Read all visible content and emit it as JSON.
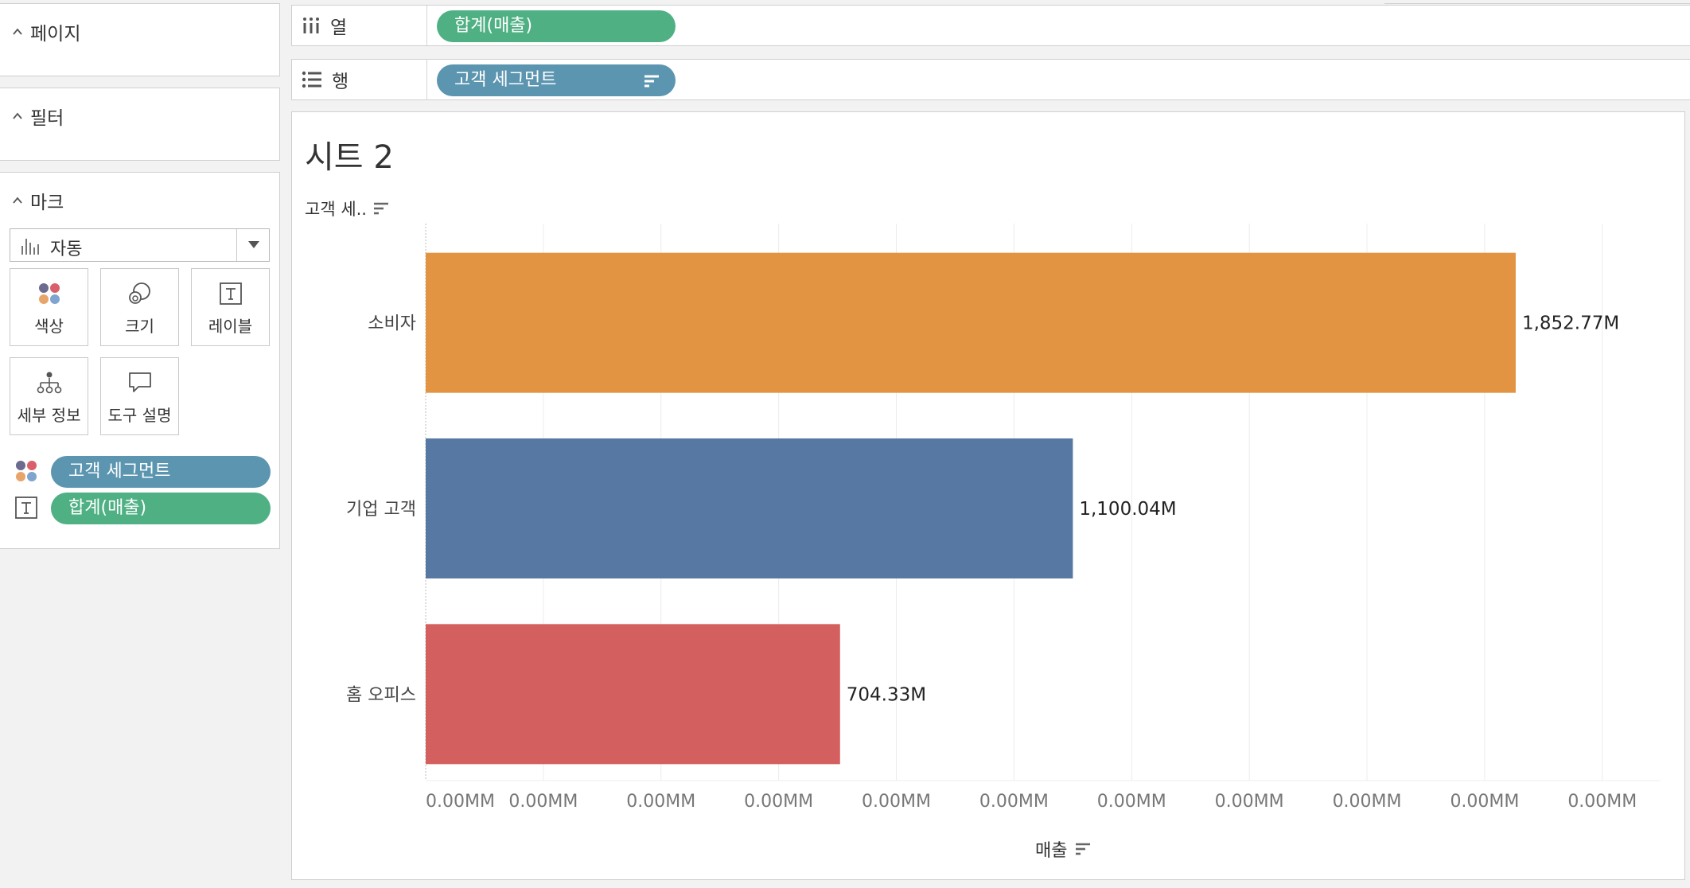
{
  "sidebar": {
    "pages": {
      "title": "페이지"
    },
    "filters": {
      "title": "필터"
    },
    "marks": {
      "title": "마크",
      "mark_type": "자동",
      "buttons": [
        {
          "label": "색상",
          "icon": "color-dots-icon"
        },
        {
          "label": "크기",
          "icon": "size-circles-icon"
        },
        {
          "label": "레이블",
          "icon": "label-t-icon"
        },
        {
          "label": "세부 정보",
          "icon": "detail-hierarchy-icon"
        },
        {
          "label": "도구 설명",
          "icon": "tooltip-bubble-icon"
        }
      ],
      "assigned": [
        {
          "label": "고객 세그먼트",
          "icon": "color-dots-icon",
          "color": "#5b95b0"
        },
        {
          "label": "합계(매출)",
          "icon": "label-t-icon",
          "color": "#4fb084"
        }
      ]
    }
  },
  "shelves": {
    "columns": {
      "label": "열",
      "pill": "합계(매출)",
      "icon": "columns-icon"
    },
    "rows": {
      "label": "행",
      "pill": "고객 세그먼트",
      "icon": "rows-icon"
    }
  },
  "view": {
    "sheet_title": "시트 2",
    "row_header": "고객 세..",
    "axis_title": "매출"
  },
  "chart_data": {
    "type": "bar",
    "orientation": "horizontal",
    "categories": [
      "소비자",
      "기업 고객",
      "홈 오피스"
    ],
    "values": [
      1852.77,
      1100.04,
      704.33
    ],
    "unit": "M",
    "data_labels": [
      "1,852.77M",
      "1,100.04M",
      "704.33M"
    ],
    "colors": [
      "#e39442",
      "#5778a3",
      "#d3605f"
    ],
    "x_tick_labels": [
      "0.00MM",
      "0.00MM",
      "0.00MM",
      "0.00MM",
      "0.00MM",
      "0.00MM",
      "0.00MM",
      "0.00MM",
      "0.00MM",
      "0.00MM",
      "0.00MM"
    ],
    "xlim": [
      0,
      2000
    ],
    "x_tick_step": 200,
    "xlabel": "매출",
    "ylabel": "고객 세..",
    "grid": "vertical"
  }
}
